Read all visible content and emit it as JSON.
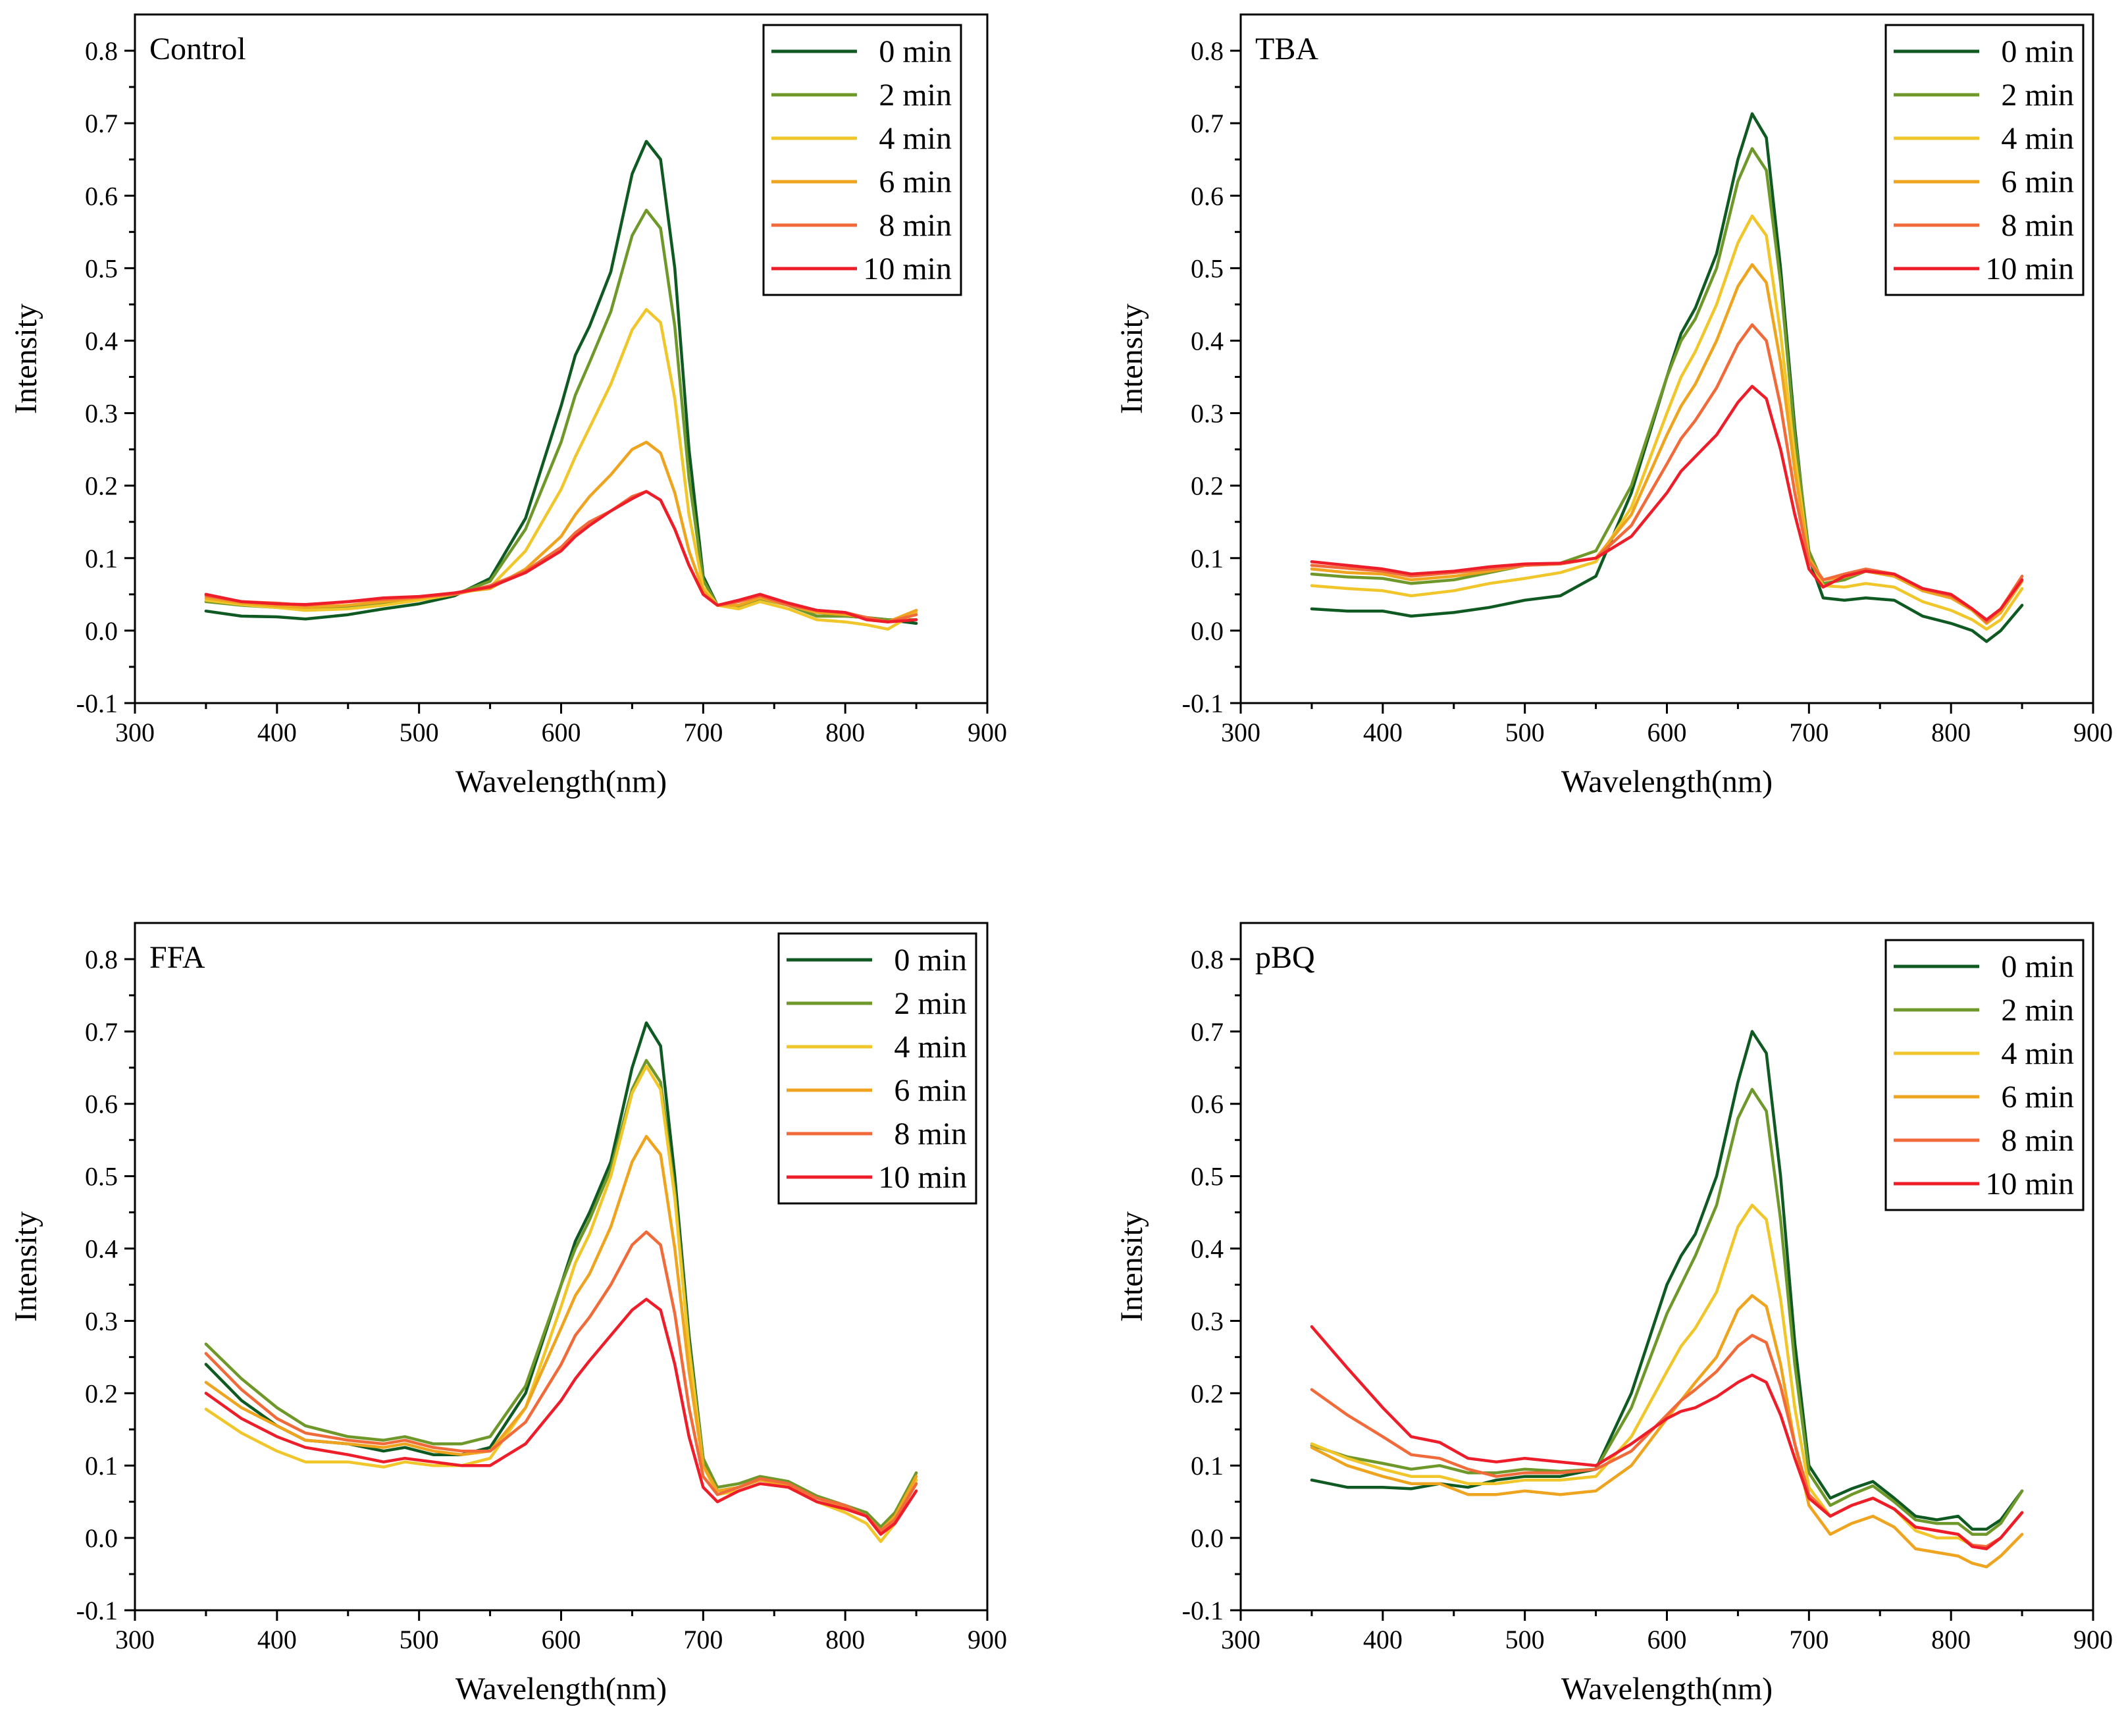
{
  "series_colors": [
    "#0f5a22",
    "#6f982a",
    "#f0c62a",
    "#eea41e",
    "#f06a3a",
    "#ee1d2a"
  ],
  "chart_data": [
    {
      "type": "line",
      "title": "Control",
      "xlabel": "Wavelength(nm)",
      "ylabel": "Intensity",
      "xlim": [
        300,
        900
      ],
      "ylim": [
        -0.1,
        0.85
      ],
      "xticks": [
        "300",
        "400",
        "500",
        "600",
        "700",
        "800",
        "900"
      ],
      "yticks": [
        "-0.1",
        "0.0",
        "0.1",
        "0.2",
        "0.3",
        "0.4",
        "0.5",
        "0.6",
        "0.7",
        "0.8"
      ],
      "legend": "top-right",
      "x": [
        350,
        375,
        400,
        420,
        450,
        475,
        500,
        525,
        550,
        575,
        600,
        610,
        620,
        635,
        650,
        660,
        670,
        680,
        690,
        700,
        710,
        725,
        740,
        760,
        780,
        800,
        815,
        830,
        850
      ],
      "series": [
        {
          "name": "0 min",
          "values": [
            0.027,
            0.02,
            0.019,
            0.016,
            0.022,
            0.03,
            0.037,
            0.048,
            0.072,
            0.155,
            0.31,
            0.38,
            0.42,
            0.495,
            0.63,
            0.675,
            0.65,
            0.5,
            0.25,
            0.075,
            0.035,
            0.032,
            0.045,
            0.035,
            0.02,
            0.02,
            0.018,
            0.015,
            0.01
          ]
        },
        {
          "name": "2 min",
          "values": [
            0.04,
            0.035,
            0.032,
            0.03,
            0.034,
            0.038,
            0.043,
            0.05,
            0.068,
            0.14,
            0.26,
            0.325,
            0.37,
            0.44,
            0.545,
            0.58,
            0.555,
            0.42,
            0.21,
            0.07,
            0.035,
            0.032,
            0.044,
            0.035,
            0.02,
            0.02,
            0.018,
            0.015,
            0.015
          ]
        },
        {
          "name": "4 min",
          "values": [
            0.042,
            0.036,
            0.032,
            0.028,
            0.03,
            0.035,
            0.042,
            0.05,
            0.06,
            0.11,
            0.195,
            0.24,
            0.28,
            0.34,
            0.415,
            0.443,
            0.425,
            0.32,
            0.16,
            0.06,
            0.035,
            0.03,
            0.04,
            0.03,
            0.015,
            0.012,
            0.008,
            0.002,
            0.025
          ]
        },
        {
          "name": "6 min",
          "values": [
            0.045,
            0.038,
            0.034,
            0.032,
            0.035,
            0.04,
            0.045,
            0.052,
            0.058,
            0.085,
            0.13,
            0.16,
            0.185,
            0.215,
            0.25,
            0.26,
            0.245,
            0.19,
            0.11,
            0.055,
            0.035,
            0.035,
            0.045,
            0.035,
            0.025,
            0.022,
            0.018,
            0.012,
            0.028
          ]
        },
        {
          "name": "8 min",
          "values": [
            0.048,
            0.04,
            0.038,
            0.035,
            0.04,
            0.043,
            0.046,
            0.05,
            0.062,
            0.082,
            0.115,
            0.135,
            0.15,
            0.165,
            0.185,
            0.192,
            0.18,
            0.14,
            0.09,
            0.05,
            0.035,
            0.04,
            0.048,
            0.035,
            0.028,
            0.025,
            0.018,
            0.012,
            0.022
          ]
        },
        {
          "name": "10 min",
          "values": [
            0.05,
            0.04,
            0.037,
            0.036,
            0.04,
            0.045,
            0.047,
            0.052,
            0.06,
            0.08,
            0.11,
            0.13,
            0.145,
            0.165,
            0.182,
            0.192,
            0.18,
            0.14,
            0.09,
            0.05,
            0.035,
            0.042,
            0.05,
            0.038,
            0.028,
            0.025,
            0.015,
            0.012,
            0.015
          ]
        }
      ]
    },
    {
      "type": "line",
      "title": "TBA",
      "xlabel": "Wavelength(nm)",
      "ylabel": "Intensity",
      "xlim": [
        300,
        900
      ],
      "ylim": [
        -0.1,
        0.85
      ],
      "xticks": [
        "300",
        "400",
        "500",
        "600",
        "700",
        "800",
        "900"
      ],
      "yticks": [
        "-0.1",
        "0.0",
        "0.1",
        "0.2",
        "0.3",
        "0.4",
        "0.5",
        "0.6",
        "0.7",
        "0.8"
      ],
      "legend": "top-right",
      "x": [
        350,
        375,
        400,
        420,
        450,
        475,
        500,
        525,
        550,
        575,
        600,
        610,
        620,
        635,
        650,
        660,
        670,
        680,
        690,
        700,
        710,
        725,
        740,
        760,
        780,
        800,
        815,
        825,
        835,
        850
      ],
      "series": [
        {
          "name": "0 min",
          "values": [
            0.03,
            0.027,
            0.027,
            0.02,
            0.025,
            0.032,
            0.042,
            0.048,
            0.075,
            0.19,
            0.35,
            0.41,
            0.445,
            0.52,
            0.65,
            0.713,
            0.68,
            0.5,
            0.28,
            0.1,
            0.045,
            0.042,
            0.045,
            0.042,
            0.02,
            0.01,
            0.0,
            -0.015,
            0.0,
            0.035
          ]
        },
        {
          "name": "2 min",
          "values": [
            0.078,
            0.074,
            0.072,
            0.065,
            0.07,
            0.08,
            0.09,
            0.093,
            0.11,
            0.2,
            0.35,
            0.4,
            0.43,
            0.5,
            0.62,
            0.665,
            0.635,
            0.48,
            0.27,
            0.11,
            0.065,
            0.07,
            0.082,
            0.075,
            0.055,
            0.045,
            0.03,
            0.01,
            0.025,
            0.075
          ]
        },
        {
          "name": "4 min",
          "values": [
            0.062,
            0.058,
            0.055,
            0.048,
            0.055,
            0.065,
            0.072,
            0.08,
            0.095,
            0.17,
            0.3,
            0.35,
            0.385,
            0.45,
            0.535,
            0.572,
            0.545,
            0.41,
            0.24,
            0.1,
            0.062,
            0.06,
            0.065,
            0.06,
            0.04,
            0.028,
            0.015,
            0.002,
            0.015,
            0.058
          ]
        },
        {
          "name": "6 min",
          "values": [
            0.085,
            0.08,
            0.078,
            0.07,
            0.075,
            0.082,
            0.09,
            0.092,
            0.1,
            0.16,
            0.27,
            0.31,
            0.34,
            0.4,
            0.475,
            0.505,
            0.48,
            0.37,
            0.22,
            0.1,
            0.07,
            0.074,
            0.082,
            0.075,
            0.055,
            0.045,
            0.028,
            0.01,
            0.025,
            0.068
          ]
        },
        {
          "name": "8 min",
          "values": [
            0.09,
            0.086,
            0.082,
            0.075,
            0.08,
            0.085,
            0.09,
            0.092,
            0.1,
            0.145,
            0.23,
            0.265,
            0.29,
            0.335,
            0.395,
            0.422,
            0.4,
            0.31,
            0.19,
            0.095,
            0.07,
            0.078,
            0.085,
            0.078,
            0.058,
            0.048,
            0.03,
            0.012,
            0.03,
            0.075
          ]
        },
        {
          "name": "10 min",
          "values": [
            0.095,
            0.09,
            0.085,
            0.078,
            0.082,
            0.088,
            0.092,
            0.093,
            0.1,
            0.13,
            0.19,
            0.22,
            0.24,
            0.27,
            0.315,
            0.337,
            0.32,
            0.25,
            0.16,
            0.085,
            0.06,
            0.075,
            0.082,
            0.078,
            0.058,
            0.05,
            0.03,
            0.015,
            0.03,
            0.07
          ]
        }
      ]
    },
    {
      "type": "line",
      "title": "FFA",
      "xlabel": "Wavelength(nm)",
      "ylabel": "Intensity",
      "xlim": [
        300,
        900
      ],
      "ylim": [
        -0.1,
        0.85
      ],
      "xticks": [
        "300",
        "400",
        "500",
        "600",
        "700",
        "800",
        "900"
      ],
      "yticks": [
        "-0.1",
        "0.0",
        "0.1",
        "0.2",
        "0.3",
        "0.4",
        "0.5",
        "0.6",
        "0.7",
        "0.8"
      ],
      "legend": "top-right",
      "x": [
        350,
        375,
        400,
        420,
        450,
        475,
        490,
        510,
        530,
        550,
        575,
        600,
        610,
        620,
        635,
        650,
        660,
        670,
        680,
        690,
        700,
        710,
        725,
        740,
        760,
        780,
        800,
        815,
        825,
        835,
        850
      ],
      "series": [
        {
          "name": "0 min",
          "values": [
            0.24,
            0.19,
            0.155,
            0.135,
            0.13,
            0.12,
            0.125,
            0.115,
            0.115,
            0.125,
            0.2,
            0.35,
            0.41,
            0.45,
            0.52,
            0.65,
            0.712,
            0.68,
            0.5,
            0.28,
            0.11,
            0.065,
            0.07,
            0.08,
            0.075,
            0.055,
            0.045,
            0.03,
            0.01,
            0.03,
            0.08
          ]
        },
        {
          "name": "2 min",
          "values": [
            0.268,
            0.22,
            0.18,
            0.155,
            0.14,
            0.135,
            0.14,
            0.13,
            0.13,
            0.14,
            0.21,
            0.35,
            0.4,
            0.44,
            0.51,
            0.62,
            0.66,
            0.63,
            0.48,
            0.27,
            0.11,
            0.07,
            0.075,
            0.085,
            0.078,
            0.058,
            0.045,
            0.035,
            0.015,
            0.035,
            0.09
          ]
        },
        {
          "name": "4 min",
          "values": [
            0.178,
            0.145,
            0.12,
            0.105,
            0.105,
            0.098,
            0.105,
            0.1,
            0.1,
            0.11,
            0.18,
            0.32,
            0.38,
            0.42,
            0.5,
            0.615,
            0.652,
            0.62,
            0.47,
            0.26,
            0.1,
            0.06,
            0.065,
            0.075,
            0.07,
            0.05,
            0.035,
            0.02,
            -0.005,
            0.02,
            0.08
          ]
        },
        {
          "name": "6 min",
          "values": [
            0.215,
            0.18,
            0.155,
            0.135,
            0.13,
            0.125,
            0.13,
            0.12,
            0.115,
            0.12,
            0.18,
            0.29,
            0.335,
            0.365,
            0.43,
            0.52,
            0.555,
            0.53,
            0.4,
            0.23,
            0.1,
            0.065,
            0.07,
            0.08,
            0.072,
            0.055,
            0.042,
            0.03,
            0.01,
            0.03,
            0.085
          ]
        },
        {
          "name": "8 min",
          "values": [
            0.255,
            0.205,
            0.165,
            0.145,
            0.135,
            0.13,
            0.135,
            0.125,
            0.12,
            0.12,
            0.16,
            0.24,
            0.28,
            0.305,
            0.35,
            0.405,
            0.423,
            0.405,
            0.31,
            0.18,
            0.085,
            0.06,
            0.07,
            0.082,
            0.075,
            0.055,
            0.045,
            0.03,
            0.01,
            0.025,
            0.075
          ]
        },
        {
          "name": "10 min",
          "values": [
            0.2,
            0.165,
            0.14,
            0.125,
            0.115,
            0.105,
            0.11,
            0.105,
            0.1,
            0.1,
            0.13,
            0.19,
            0.22,
            0.245,
            0.28,
            0.315,
            0.33,
            0.315,
            0.24,
            0.14,
            0.07,
            0.05,
            0.065,
            0.075,
            0.07,
            0.05,
            0.04,
            0.03,
            0.005,
            0.02,
            0.065
          ]
        }
      ]
    },
    {
      "type": "line",
      "title": "pBQ",
      "xlabel": "Wavelength(nm)",
      "ylabel": "Intensity",
      "xlim": [
        300,
        900
      ],
      "ylim": [
        -0.1,
        0.85
      ],
      "xticks": [
        "300",
        "400",
        "500",
        "600",
        "700",
        "800",
        "900"
      ],
      "yticks": [
        "-0.1",
        "0.0",
        "0.1",
        "0.2",
        "0.3",
        "0.4",
        "0.5",
        "0.6",
        "0.7",
        "0.8"
      ],
      "legend": "top-right",
      "x": [
        350,
        375,
        400,
        420,
        440,
        460,
        480,
        500,
        525,
        550,
        575,
        600,
        610,
        620,
        635,
        650,
        660,
        670,
        680,
        690,
        700,
        715,
        730,
        745,
        760,
        775,
        790,
        805,
        815,
        825,
        835,
        850
      ],
      "series": [
        {
          "name": "0 min",
          "values": [
            0.08,
            0.07,
            0.07,
            0.068,
            0.075,
            0.07,
            0.08,
            0.085,
            0.085,
            0.095,
            0.2,
            0.35,
            0.39,
            0.42,
            0.5,
            0.63,
            0.7,
            0.67,
            0.5,
            0.27,
            0.1,
            0.055,
            0.068,
            0.078,
            0.055,
            0.03,
            0.025,
            0.03,
            0.012,
            0.012,
            0.025,
            0.065
          ]
        },
        {
          "name": "2 min",
          "values": [
            0.128,
            0.112,
            0.103,
            0.095,
            0.1,
            0.09,
            0.09,
            0.095,
            0.092,
            0.095,
            0.18,
            0.31,
            0.35,
            0.39,
            0.46,
            0.58,
            0.62,
            0.59,
            0.44,
            0.24,
            0.09,
            0.045,
            0.06,
            0.072,
            0.05,
            0.025,
            0.02,
            0.02,
            0.005,
            0.005,
            0.02,
            0.065
          ]
        },
        {
          "name": "4 min",
          "values": [
            0.13,
            0.11,
            0.095,
            0.085,
            0.085,
            0.075,
            0.075,
            0.08,
            0.08,
            0.085,
            0.14,
            0.23,
            0.265,
            0.29,
            0.34,
            0.43,
            0.46,
            0.44,
            0.33,
            0.18,
            0.07,
            0.03,
            0.045,
            0.055,
            0.04,
            0.01,
            0.0,
            0.0,
            -0.01,
            -0.015,
            0.0,
            0.035
          ]
        },
        {
          "name": "6 min",
          "values": [
            0.125,
            0.1,
            0.085,
            0.075,
            0.075,
            0.06,
            0.06,
            0.065,
            0.06,
            0.065,
            0.1,
            0.165,
            0.19,
            0.215,
            0.25,
            0.315,
            0.335,
            0.32,
            0.24,
            0.13,
            0.045,
            0.005,
            0.02,
            0.03,
            0.015,
            -0.015,
            -0.02,
            -0.025,
            -0.035,
            -0.04,
            -0.025,
            0.005
          ]
        },
        {
          "name": "8 min",
          "values": [
            0.205,
            0.17,
            0.14,
            0.115,
            0.11,
            0.095,
            0.085,
            0.09,
            0.09,
            0.095,
            0.12,
            0.17,
            0.19,
            0.205,
            0.23,
            0.265,
            0.28,
            0.27,
            0.21,
            0.13,
            0.06,
            0.03,
            0.045,
            0.055,
            0.04,
            0.015,
            0.01,
            0.005,
            -0.01,
            -0.012,
            0.0,
            0.035
          ]
        },
        {
          "name": "10 min",
          "values": [
            0.292,
            0.235,
            0.18,
            0.14,
            0.132,
            0.11,
            0.105,
            0.11,
            0.105,
            0.1,
            0.13,
            0.165,
            0.175,
            0.18,
            0.195,
            0.215,
            0.225,
            0.215,
            0.17,
            0.11,
            0.055,
            0.03,
            0.045,
            0.055,
            0.04,
            0.015,
            0.01,
            0.005,
            -0.012,
            -0.015,
            0.0,
            0.035
          ]
        }
      ]
    }
  ]
}
